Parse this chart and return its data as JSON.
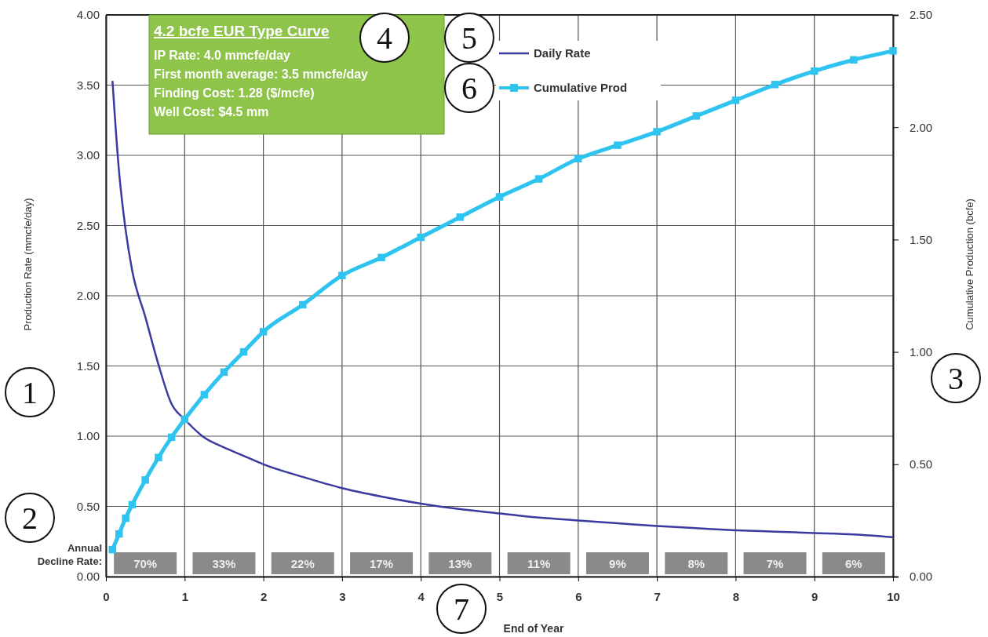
{
  "chart_data": {
    "type": "line",
    "title": "4.2 bcfe EUR Type Curve",
    "xlabel": "End of Year",
    "ylabel": "Production Rate (mmcfe/day)",
    "y2label": "Cumulative Production (bcfe)",
    "x": [
      0.083,
      0.167,
      0.25,
      0.333,
      0.5,
      0.667,
      0.833,
      1,
      1.25,
      1.5,
      1.75,
      2,
      2.5,
      3,
      3.5,
      4,
      4.5,
      5,
      5.5,
      6,
      6.5,
      7,
      7.5,
      8,
      8.5,
      9,
      9.5,
      10
    ],
    "series": [
      {
        "name": "Daily Rate",
        "color": "#3a3aa0",
        "marker": "none",
        "values": [
          3.53,
          2.88,
          2.47,
          2.18,
          1.85,
          1.51,
          1.23,
          1.12,
          0.99,
          0.92,
          0.86,
          0.8,
          0.71,
          0.63,
          0.57,
          0.52,
          0.48,
          0.45,
          0.42,
          0.4,
          0.38,
          0.36,
          0.345,
          0.33,
          0.32,
          0.31,
          0.3,
          0.28
        ]
      },
      {
        "name": "Cumulative Prod",
        "color": "#2ec4ef",
        "marker": "square",
        "axis": "y2",
        "values": [
          0.12,
          0.19,
          0.26,
          0.32,
          0.43,
          0.53,
          0.62,
          0.7,
          0.81,
          0.91,
          1.0,
          1.09,
          1.21,
          1.34,
          1.42,
          1.51,
          1.6,
          1.69,
          1.77,
          1.86,
          1.92,
          1.98,
          2.05,
          2.12,
          2.19,
          2.25,
          2.3,
          2.34
        ]
      }
    ],
    "xlim": [
      0,
      10
    ],
    "xticks": [
      0,
      1,
      2,
      3,
      4,
      5,
      6,
      7,
      8,
      9,
      10
    ],
    "ylim": [
      0,
      4
    ],
    "yticks": [
      {
        "value": 0,
        "label": "0.00"
      },
      {
        "value": 0.5,
        "label": "0.50"
      },
      {
        "value": 1,
        "label": "1.00"
      },
      {
        "value": 1.5,
        "label": "1.50"
      },
      {
        "value": 2,
        "label": "2.00"
      },
      {
        "value": 2.5,
        "label": "2.50"
      },
      {
        "value": 3,
        "label": "3.00"
      },
      {
        "value": 3.5,
        "label": "3.50"
      },
      {
        "value": 4,
        "label": "4.00"
      }
    ],
    "y2lim": [
      0,
      2.5
    ],
    "y2ticks": [
      {
        "value": 0,
        "label": "0.00"
      },
      {
        "value": 0.5,
        "label": "0.50"
      },
      {
        "value": 1,
        "label": "1.00"
      },
      {
        "value": 1.5,
        "label": "1.50"
      },
      {
        "value": 2,
        "label": "2.00"
      },
      {
        "value": 2.5,
        "label": "2.50"
      }
    ],
    "grid": true,
    "legend": "top",
    "annotations": [
      "IP Rate: 4.0 mmcfe/day",
      "First month average: 3.5 mmcfe/day",
      "Finding Cost:  1.28 ($/mcfe)",
      "Well Cost:  $4.5 mm",
      "Annual Decline Rate:",
      "70%",
      "33%",
      "22%",
      "17%",
      "13%",
      "11%",
      "9%",
      "8%",
      "7%",
      "6%",
      "1",
      "2",
      "3",
      "4",
      "5",
      "6",
      "7"
    ]
  }
}
